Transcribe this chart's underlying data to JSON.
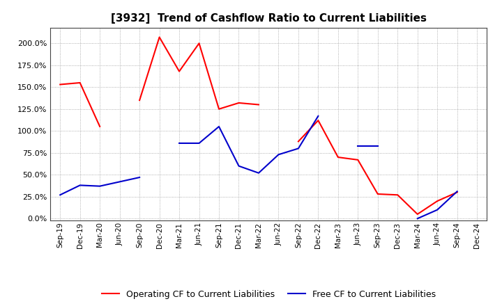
{
  "title": "[3932]  Trend of Cashflow Ratio to Current Liabilities",
  "x_labels": [
    "Sep-19",
    "Dec-19",
    "Mar-20",
    "Jun-20",
    "Sep-20",
    "Dec-20",
    "Mar-21",
    "Jun-21",
    "Sep-21",
    "Dec-21",
    "Mar-22",
    "Jun-22",
    "Sep-22",
    "Dec-22",
    "Mar-23",
    "Jun-23",
    "Sep-23",
    "Dec-23",
    "Mar-24",
    "Jun-24",
    "Sep-24",
    "Dec-24"
  ],
  "operating_cf": [
    1.53,
    1.55,
    1.05,
    null,
    1.35,
    2.07,
    1.68,
    2.0,
    1.25,
    1.32,
    1.3,
    null,
    0.88,
    1.12,
    0.7,
    0.67,
    0.28,
    0.27,
    0.05,
    0.2,
    0.3,
    null
  ],
  "free_cf": [
    0.27,
    0.38,
    0.37,
    0.42,
    0.47,
    null,
    0.86,
    0.86,
    1.05,
    0.6,
    0.52,
    0.73,
    0.8,
    1.17,
    null,
    0.83,
    0.83,
    null,
    0.0,
    0.1,
    0.31,
    null
  ],
  "operating_color": "#ff0000",
  "free_color": "#0000cc",
  "yticks": [
    0.0,
    0.25,
    0.5,
    0.75,
    1.0,
    1.25,
    1.5,
    1.75,
    2.0
  ],
  "background_color": "#ffffff",
  "grid_color": "#999999",
  "legend_labels": [
    "Operating CF to Current Liabilities",
    "Free CF to Current Liabilities"
  ]
}
